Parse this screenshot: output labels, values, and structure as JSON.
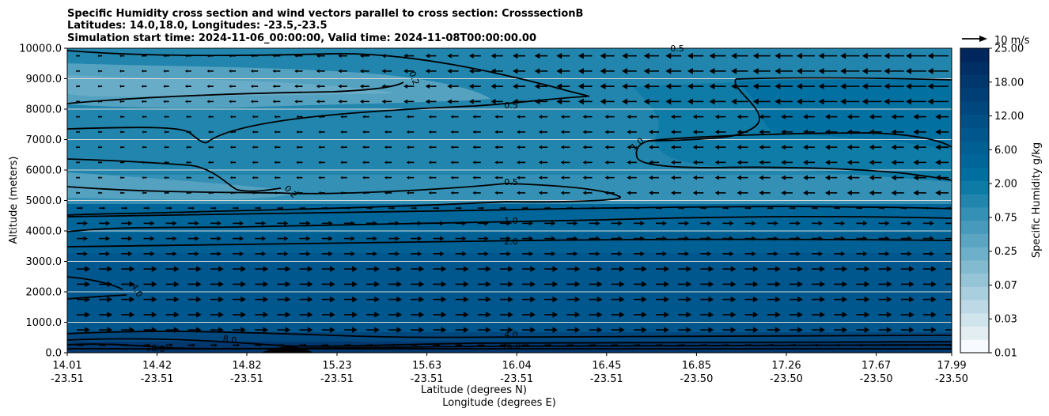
{
  "chart_data": {
    "type": "contour",
    "title_lines": [
      "Specific Humidity cross section and wind vectors parallel to cross section: CrosssectionB",
      "Latitudes: 14.0,18.0, Longitudes: -23.5,-23.5",
      "Simulation start time: 2024-11-06_00:00:00, Valid time: 2024-11-08T00:00:00.00"
    ],
    "ylabel": "Altitude (meters)",
    "xlabel_lat": "Latitude (degrees N)",
    "xlabel_lon": "Longitude (degrees E)",
    "ylim": [
      0,
      10000
    ],
    "y_ticks": [
      "0.0",
      "1000.0",
      "2000.0",
      "3000.0",
      "4000.0",
      "5000.0",
      "6000.0",
      "7000.0",
      "8000.0",
      "9000.0",
      "10000.0"
    ],
    "x_ticks": [
      {
        "lat": "14.01",
        "lon": "-23.51"
      },
      {
        "lat": "14.42",
        "lon": "-23.51"
      },
      {
        "lat": "14.82",
        "lon": "-23.51"
      },
      {
        "lat": "15.23",
        "lon": "-23.51"
      },
      {
        "lat": "15.63",
        "lon": "-23.51"
      },
      {
        "lat": "16.04",
        "lon": "-23.51"
      },
      {
        "lat": "16.45",
        "lon": "-23.51"
      },
      {
        "lat": "16.85",
        "lon": "-23.50"
      },
      {
        "lat": "17.26",
        "lon": "-23.50"
      },
      {
        "lat": "17.67",
        "lon": "-23.50"
      },
      {
        "lat": "17.99",
        "lon": "-23.50"
      }
    ],
    "grid": "horizontal",
    "colorbar": {
      "label": "Specific Humidity g/kg",
      "levels": [
        0.01,
        0.02,
        0.03,
        0.05,
        0.07,
        0.1,
        0.15,
        0.25,
        0.35,
        0.5,
        0.75,
        1.0,
        1.5,
        2.0,
        3.0,
        4.0,
        6.0,
        8.0,
        10.0,
        12.0,
        15.0,
        18.0,
        20.0,
        25.0
      ],
      "tick_labels": [
        "0.01",
        "0.03",
        "0.07",
        "0.25",
        "0.75",
        "2.00",
        "6.00",
        "12.00",
        "18.00",
        "25.00"
      ],
      "colors": [
        "#f7fbff",
        "#e3eef3",
        "#d0e4ec",
        "#bcd9e5",
        "#a9cfde",
        "#95c4d7",
        "#82bad0",
        "#6eafc9",
        "#5ba5c2",
        "#479abb",
        "#3490b4",
        "#2185ad",
        "#0d7ba6",
        "#006e9f",
        "#006699",
        "#005f93",
        "#00578d",
        "#004f85",
        "#00477d",
        "#003f75",
        "#00376d",
        "#002f65",
        "#00275d"
      ]
    },
    "quiver_key": {
      "label": "10 m/s",
      "speed_ms": 10
    },
    "contour_labels": [
      "0.5",
      "0.2",
      "0.5",
      "1.0",
      "0.2",
      "0.5",
      "1.0",
      "2.0",
      "4.0",
      "4.0",
      "8.0",
      "16.0",
      "16.0"
    ]
  }
}
